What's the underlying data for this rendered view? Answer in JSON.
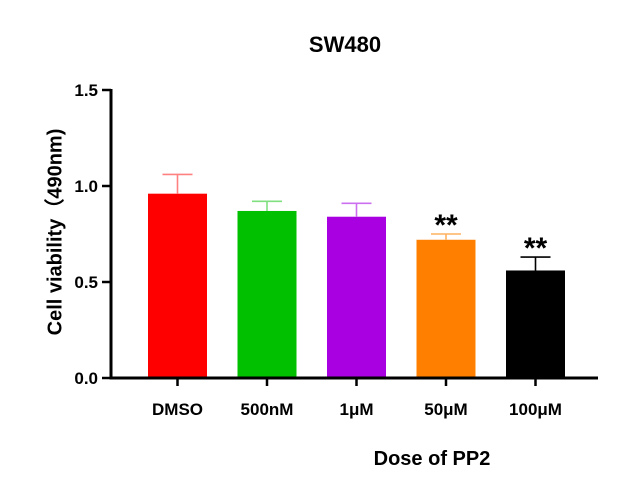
{
  "chart_data": {
    "type": "bar",
    "title": "SW480",
    "xlabel": "Dose of PP2",
    "ylabel": "Cell viability（490nm)",
    "ylim": [
      0,
      1.5
    ],
    "yticks": [
      "0.0",
      "0.5",
      "1.0",
      "1.5"
    ],
    "ytick_values": [
      0,
      0.5,
      1.0,
      1.5
    ],
    "categories": [
      "DMSO",
      "500nM",
      "1μM",
      "50μM",
      "100μM"
    ],
    "values": [
      0.96,
      0.87,
      0.84,
      0.72,
      0.56
    ],
    "error": [
      0.1,
      0.05,
      0.07,
      0.03,
      0.07
    ],
    "colors": [
      "#ff0000",
      "#00c000",
      "#a800e0",
      "#ff8000",
      "#000000"
    ],
    "error_colors": [
      "#ff8080",
      "#80e080",
      "#cc70f0",
      "#ffb060",
      "#000000"
    ],
    "significance": [
      "",
      "",
      "",
      "**",
      "**"
    ],
    "grid": false,
    "legend": "none"
  }
}
